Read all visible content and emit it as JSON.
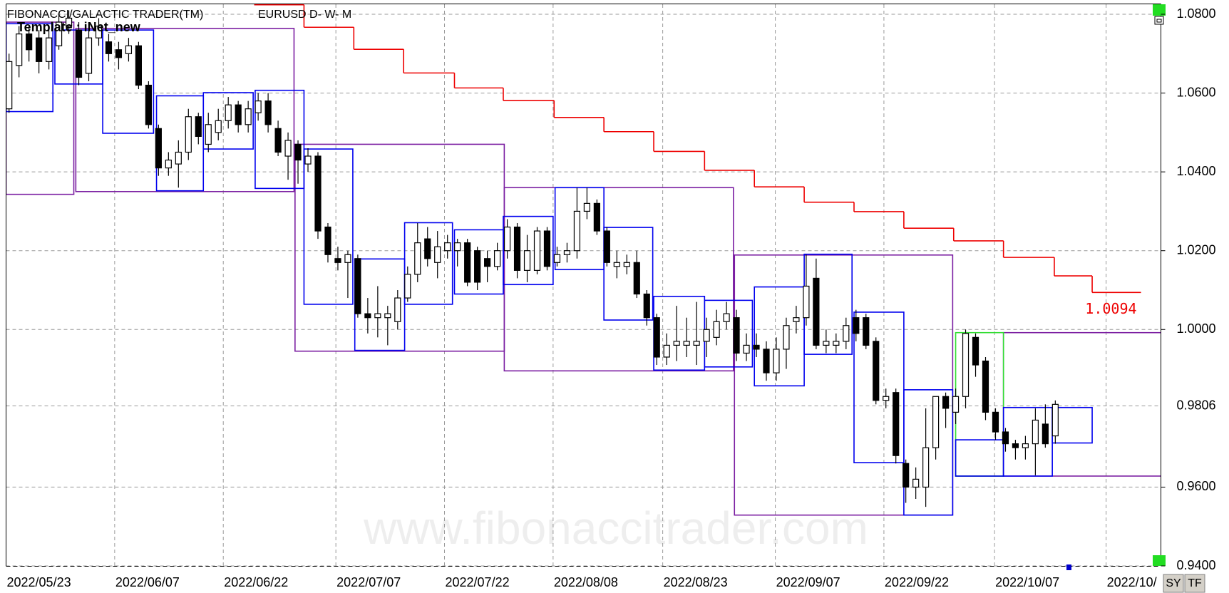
{
  "chart_data": {
    "type": "candlestick",
    "title": "FIBONACCI/GALACTIC TRADER(TM)",
    "subtitle": "EURUSD D- W- M",
    "annotation": "Template : iNet_new",
    "watermark": "www.fibonaccitrader.com",
    "xlim": [
      -0.3,
      115.6
    ],
    "xticks": [
      {
        "value": -0.3,
        "label": "2022/05/23"
      },
      {
        "value": 10.6,
        "label": "2022/06/07"
      },
      {
        "value": 21.5,
        "label": "2022/06/22"
      },
      {
        "value": 32.8,
        "label": "2022/07/07"
      },
      {
        "value": 43.7,
        "label": "2022/07/22"
      },
      {
        "value": 54.6,
        "label": "2022/08/08"
      },
      {
        "value": 65.6,
        "label": "2022/08/23"
      },
      {
        "value": 76.9,
        "label": "2022/09/07"
      },
      {
        "value": 87.8,
        "label": "2022/09/22"
      },
      {
        "value": 98.9,
        "label": "2022/10/07"
      },
      {
        "value": 110.1,
        "label": "2022/10/"
      }
    ],
    "ylim": [
      0.94,
      1.08
    ],
    "yticks": [
      {
        "value": 1.08,
        "label": "1.0800"
      },
      {
        "value": 1.06,
        "label": "1.0600"
      },
      {
        "value": 1.04,
        "label": "1.0400"
      },
      {
        "value": 1.02,
        "label": "1.0200"
      },
      {
        "value": 1.0,
        "label": "1.0000"
      },
      {
        "value": 0.96,
        "label": "0.9600"
      },
      {
        "value": 0.94,
        "label": "0.9400"
      }
    ],
    "last_price": 0.9806,
    "grid": true,
    "up_color": "#ffffff",
    "down_color": "#000000",
    "open": [
      1.056,
      1.067,
      1.075,
      1.074,
      1.068,
      1.072,
      1.077,
      1.076,
      1.065,
      1.074,
      1.073,
      1.071,
      1.07,
      1.072,
      1.062,
      1.051,
      1.041,
      1.042,
      1.045,
      1.054,
      1.047,
      1.05,
      1.053,
      1.057,
      1.052,
      1.055,
      1.058,
      1.051,
      1.044,
      1.047,
      1.042,
      1.044,
      1.026,
      1.018,
      1.017,
      1.018,
      1.004,
      1.003,
      1.003,
      1.002,
      1.008,
      1.014,
      1.023,
      1.017,
      1.02,
      1.02,
      1.022,
      1.02,
      1.018,
      1.016,
      1.02,
      1.026,
      1.015,
      1.015,
      1.025,
      1.017,
      1.019,
      1.02,
      1.03,
      1.032,
      1.025,
      1.016,
      1.016,
      1.017,
      1.009,
      1.003,
      0.993,
      0.996,
      0.996,
      0.996,
      0.997,
      0.998,
      1.002,
      1.003,
      0.994,
      0.996,
      0.995,
      0.989,
      0.995,
      1.002,
      1.003,
      1.013,
      0.996,
      0.996,
      0.997,
      1.003,
      1.003,
      0.997,
      0.982,
      0.984,
      0.966,
      0.96,
      0.96,
      0.97,
      0.983,
      0.979,
      0.983,
      0.998,
      0.992,
      0.979,
      0.974,
      0.971,
      0.97,
      0.971,
      0.976,
      0.973
    ],
    "high": [
      1.07,
      1.077,
      1.077,
      1.076,
      1.076,
      1.08,
      1.081,
      1.078,
      1.076,
      1.079,
      1.075,
      1.073,
      1.074,
      1.073,
      1.063,
      1.052,
      1.045,
      1.048,
      1.056,
      1.055,
      1.055,
      1.056,
      1.059,
      1.058,
      1.058,
      1.06,
      1.06,
      1.053,
      1.05,
      1.048,
      1.046,
      1.045,
      1.027,
      1.021,
      1.02,
      1.019,
      1.008,
      1.011,
      1.006,
      1.01,
      1.016,
      1.027,
      1.026,
      1.025,
      1.024,
      1.023,
      1.023,
      1.021,
      1.02,
      1.022,
      1.028,
      1.027,
      1.024,
      1.026,
      1.026,
      1.021,
      1.022,
      1.036,
      1.036,
      1.033,
      1.026,
      1.02,
      1.019,
      1.02,
      1.01,
      1.004,
      0.999,
      1.006,
      1.003,
      1.007,
      1.003,
      1.005,
      1.007,
      1.005,
      0.999,
      0.999,
      0.997,
      0.998,
      1.003,
      1.006,
      1.019,
      1.018,
      1.0,
      0.999,
      1.003,
      1.005,
      1.004,
      0.998,
      0.985,
      0.985,
      0.967,
      0.965,
      0.98,
      0.983,
      0.984,
      0.985,
      1.0,
      0.999,
      0.993,
      0.98,
      0.975,
      0.972,
      0.973,
      0.98,
      0.981,
      0.982
    ],
    "low": [
      1.055,
      1.064,
      1.068,
      1.065,
      1.066,
      1.071,
      1.075,
      1.062,
      1.063,
      1.072,
      1.068,
      1.066,
      1.068,
      1.061,
      1.051,
      1.039,
      1.039,
      1.036,
      1.043,
      1.047,
      1.045,
      1.048,
      1.051,
      1.05,
      1.05,
      1.053,
      1.05,
      1.044,
      1.038,
      1.037,
      1.04,
      1.023,
      1.017,
      1.015,
      1.008,
      1.003,
      0.999,
      0.998,
      0.996,
      1.0,
      1.007,
      1.012,
      1.016,
      1.013,
      1.018,
      1.016,
      1.011,
      1.01,
      1.012,
      1.015,
      1.018,
      1.013,
      1.012,
      1.014,
      1.015,
      1.016,
      1.017,
      1.018,
      1.028,
      1.024,
      1.016,
      1.013,
      1.014,
      1.008,
      1.001,
      0.991,
      0.991,
      0.992,
      0.993,
      0.991,
      0.993,
      0.996,
      1.0,
      0.992,
      0.992,
      0.993,
      0.987,
      0.987,
      0.99,
      0.999,
      1.001,
      0.995,
      0.994,
      0.994,
      0.995,
      0.997,
      0.995,
      0.981,
      0.98,
      0.966,
      0.956,
      0.957,
      0.955,
      0.967,
      0.975,
      0.976,
      0.98,
      0.988,
      0.977,
      0.972,
      0.969,
      0.967,
      0.967,
      0.963,
      0.97,
      0.971
    ],
    "close": [
      1.068,
      1.075,
      1.071,
      1.068,
      1.074,
      1.078,
      1.079,
      1.064,
      1.074,
      1.077,
      1.07,
      1.069,
      1.072,
      1.062,
      1.052,
      1.041,
      1.043,
      1.045,
      1.054,
      1.049,
      1.052,
      1.053,
      1.057,
      1.052,
      1.056,
      1.058,
      1.052,
      1.045,
      1.048,
      1.043,
      1.044,
      1.025,
      1.019,
      1.017,
      1.019,
      1.004,
      1.003,
      1.004,
      1.004,
      1.008,
      1.014,
      1.022,
      1.018,
      1.021,
      1.022,
      1.022,
      1.012,
      1.012,
      1.016,
      1.02,
      1.026,
      1.015,
      1.02,
      1.025,
      1.016,
      1.019,
      1.02,
      1.03,
      1.032,
      1.025,
      1.017,
      1.017,
      1.017,
      1.009,
      1.003,
      0.993,
      0.996,
      0.997,
      0.997,
      0.997,
      1.0,
      1.002,
      1.004,
      0.994,
      0.996,
      0.995,
      0.989,
      0.995,
      1.001,
      1.003,
      1.011,
      0.996,
      0.997,
      0.997,
      1.001,
      0.999,
      0.996,
      0.982,
      0.983,
      0.968,
      0.96,
      0.962,
      0.97,
      0.983,
      0.98,
      0.983,
      0.999,
      0.991,
      0.979,
      0.974,
      0.971,
      0.97,
      0.971,
      0.977,
      0.971,
      0.981
    ],
    "boxes": [
      {
        "color": "#7b1fa2",
        "x": [
          -0.3,
          6.5
        ],
        "y": [
          1.0343,
          1.078
        ]
      },
      {
        "color": "#7b1fa2",
        "x": [
          6.7,
          28.6
        ],
        "y": [
          1.035,
          1.0764
        ]
      },
      {
        "color": "#7b1fa2",
        "x": [
          28.7,
          49.7
        ],
        "y": [
          0.9945,
          1.047
        ]
      },
      {
        "color": "#7b1fa2",
        "x": [
          49.7,
          72.7
        ],
        "y": [
          0.9895,
          1.036
        ]
      },
      {
        "color": "#7b1fa2",
        "x": [
          72.8,
          94.7
        ],
        "y": [
          0.9529,
          1.0189
        ]
      },
      {
        "color": "#7b1fa2",
        "x": [
          99.8,
          115.7
        ],
        "y": [
          0.9628,
          0.9992
        ]
      },
      {
        "color": "#7b1fa2",
        "x": [
          95.0,
          99.8
        ],
        "y": [
          0.9628,
          0.9628
        ]
      },
      {
        "color": "#33dd33",
        "x": [
          95.0,
          99.8
        ],
        "y": [
          0.9628,
          0.9992
        ]
      },
      {
        "color": "#0000ee",
        "x": [
          -0.3,
          4.4
        ],
        "y": [
          1.0553,
          1.0776
        ]
      },
      {
        "color": "#0000ee",
        "x": [
          4.6,
          9.4
        ],
        "y": [
          1.0623,
          1.076
        ]
      },
      {
        "color": "#0000ee",
        "x": [
          9.4,
          14.5
        ],
        "y": [
          1.0498,
          1.076
        ]
      },
      {
        "color": "#0000ee",
        "x": [
          14.8,
          19.5
        ],
        "y": [
          1.0352,
          1.0593
        ]
      },
      {
        "color": "#0000ee",
        "x": [
          19.5,
          24.5
        ],
        "y": [
          1.0458,
          1.0601
        ]
      },
      {
        "color": "#0000ee",
        "x": [
          24.7,
          29.6
        ],
        "y": [
          1.0358,
          1.0607
        ]
      },
      {
        "color": "#0000ee",
        "x": [
          29.6,
          34.5
        ],
        "y": [
          1.0064,
          1.0458
        ]
      },
      {
        "color": "#0000ee",
        "x": [
          34.7,
          39.7
        ],
        "y": [
          0.9947,
          1.0179
        ]
      },
      {
        "color": "#0000ee",
        "x": [
          39.7,
          44.5
        ],
        "y": [
          1.0064,
          1.0271
        ]
      },
      {
        "color": "#0000ee",
        "x": [
          44.7,
          49.6
        ],
        "y": [
          1.009,
          1.0253
        ]
      },
      {
        "color": "#0000ee",
        "x": [
          49.6,
          54.6
        ],
        "y": [
          1.0114,
          1.0287
        ]
      },
      {
        "color": "#0000ee",
        "x": [
          54.8,
          59.7
        ],
        "y": [
          1.0152,
          1.036
        ]
      },
      {
        "color": "#0000ee",
        "x": [
          59.7,
          64.6
        ],
        "y": [
          1.0024,
          1.0259
        ]
      },
      {
        "color": "#0000ee",
        "x": [
          64.7,
          69.8
        ],
        "y": [
          0.9897,
          1.0084
        ]
      },
      {
        "color": "#0000ee",
        "x": [
          69.8,
          74.6
        ],
        "y": [
          0.9905,
          1.0074
        ]
      },
      {
        "color": "#0000ee",
        "x": [
          74.8,
          79.8
        ],
        "y": [
          0.9857,
          1.0108
        ]
      },
      {
        "color": "#0000ee",
        "x": [
          79.8,
          84.6
        ],
        "y": [
          0.9937,
          1.0191
        ]
      },
      {
        "color": "#0000ee",
        "x": [
          84.8,
          89.8
        ],
        "y": [
          0.9662,
          1.0044
        ]
      },
      {
        "color": "#0000ee",
        "x": [
          89.8,
          94.7
        ],
        "y": [
          0.9529,
          0.9847
        ]
      },
      {
        "color": "#0000ee",
        "x": [
          95.0,
          99.8
        ],
        "y": [
          0.9628,
          0.972
        ]
      },
      {
        "color": "#0000ee",
        "x": [
          99.8,
          104.7
        ],
        "y": [
          0.9628,
          0.9802
        ]
      },
      {
        "color": "#0000ee",
        "x": [
          104.7,
          108.7
        ],
        "y": [
          0.9712,
          0.9802
        ]
      }
    ],
    "resistance": {
      "color": "#ee0000",
      "x": [
        24.6,
        29.6,
        34.6,
        39.6,
        44.7,
        49.6,
        54.7,
        59.7,
        64.7,
        69.8,
        74.8,
        79.8,
        84.8,
        89.8,
        94.8,
        99.8,
        104.9,
        108.7
      ],
      "x_end": 113.6,
      "values": [
        1.0824,
        1.0767,
        1.0711,
        1.0651,
        1.0613,
        1.0581,
        1.0538,
        1.0502,
        1.0452,
        1.0404,
        1.0362,
        1.0323,
        1.0299,
        1.0257,
        1.0225,
        1.0183,
        1.0136,
        1.0094
      ]
    }
  }
}
